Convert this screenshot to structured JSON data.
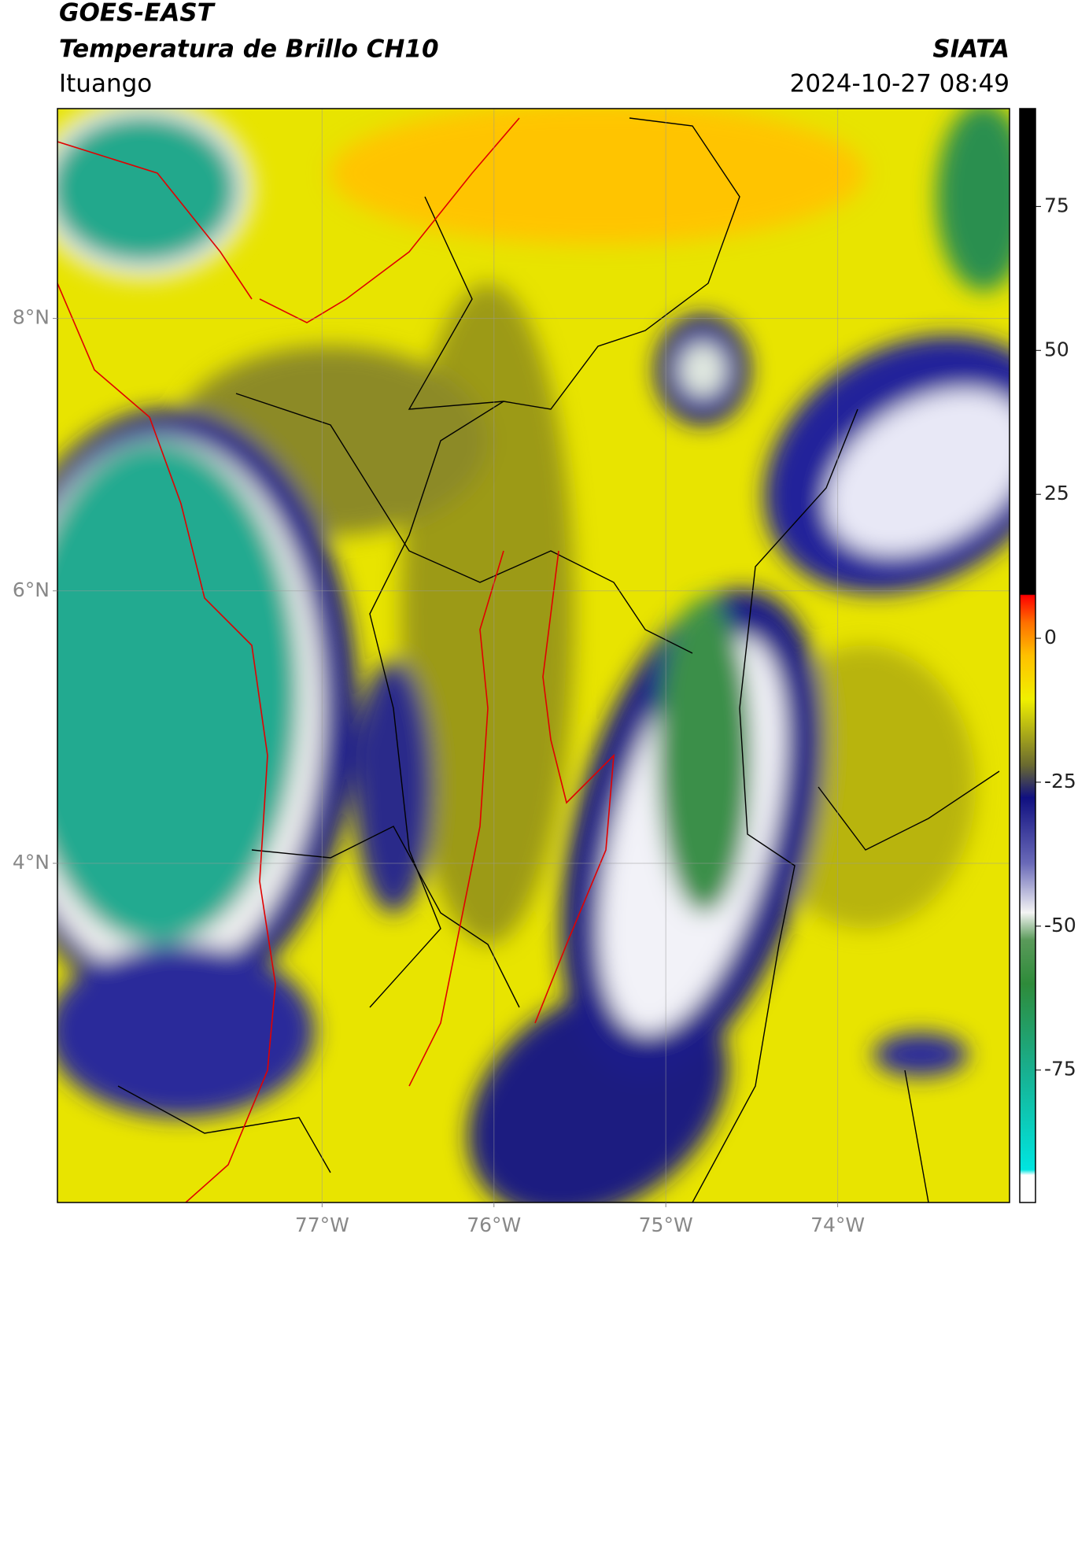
{
  "header": {
    "title": "GOES-EAST",
    "subtitle": "Temperatura de Brillo CH10",
    "source": "SIATA",
    "location": "Ituango",
    "datetime": "2024-10-27 08:49"
  },
  "map": {
    "xlim": [
      -78.54,
      -73.0
    ],
    "ylim": [
      1.51,
      9.54
    ],
    "xticks": [
      {
        "value": -77,
        "label": "77°W"
      },
      {
        "value": -76,
        "label": "76°W"
      },
      {
        "value": -75,
        "label": "75°W"
      },
      {
        "value": -74,
        "label": "74°W"
      }
    ],
    "yticks": [
      {
        "value": 8,
        "label": "8°N"
      },
      {
        "value": 6,
        "label": "6°N"
      },
      {
        "value": 4,
        "label": "4°N"
      }
    ],
    "grid": true
  },
  "colorbar": {
    "lim": [
      -98,
      92
    ],
    "ticks": [
      -75,
      -50,
      -25,
      0,
      25,
      50,
      75
    ]
  }
}
